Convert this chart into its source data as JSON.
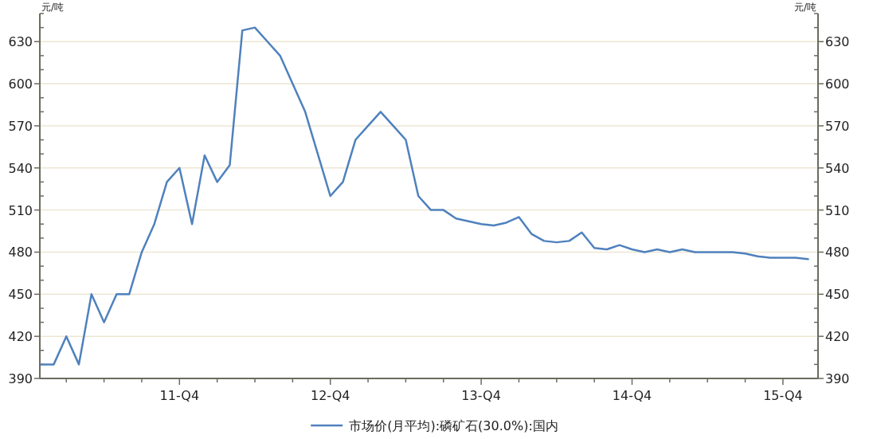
{
  "chart_data": {
    "type": "line",
    "ylabel": "元/吨",
    "y2label": "元/吨",
    "categories": [
      null,
      null,
      null,
      null,
      null,
      null,
      null,
      null,
      null,
      null,
      null,
      "11-Q4",
      null,
      null,
      null,
      null,
      null,
      null,
      null,
      null,
      null,
      null,
      null,
      "12-Q4",
      null,
      null,
      null,
      null,
      null,
      null,
      null,
      null,
      null,
      null,
      null,
      "13-Q4",
      null,
      null,
      null,
      null,
      null,
      null,
      null,
      null,
      null,
      null,
      null,
      "14-Q4",
      null,
      null,
      null,
      null,
      null,
      null,
      null,
      null,
      null,
      null,
      null,
      "15-Q4",
      null,
      null
    ],
    "series": [
      {
        "name": "市场价(月平均):磷矿石(30.0%):国内",
        "color": "#4f81bd",
        "values": [
          400,
          400,
          420,
          400,
          450,
          430,
          450,
          450,
          480,
          500,
          530,
          540,
          500,
          549,
          530,
          542,
          638,
          640,
          630,
          620,
          600,
          580,
          550,
          520,
          530,
          560,
          570,
          580,
          570,
          560,
          520,
          510,
          510,
          504,
          502,
          500,
          499,
          501,
          505,
          493,
          488,
          487,
          488,
          494,
          483,
          482,
          485,
          482,
          480,
          482,
          480,
          482,
          480,
          480,
          480,
          480,
          479,
          477,
          476,
          476,
          476,
          475
        ]
      }
    ],
    "ylim": [
      390,
      650
    ],
    "yticks": [
      390,
      {
        "value": 400,
        "label": null
      },
      {
        "value": 410,
        "label": null
      },
      420,
      {
        "value": 430,
        "label": null
      },
      {
        "value": 440,
        "label": null
      },
      450,
      {
        "value": 460,
        "label": null
      },
      {
        "value": 470,
        "label": null
      },
      480,
      {
        "value": 490,
        "label": null
      },
      {
        "value": 500,
        "label": null
      },
      510,
      {
        "value": 520,
        "label": null
      },
      {
        "value": 530,
        "label": null
      },
      540,
      {
        "value": 550,
        "label": null
      },
      {
        "value": 560,
        "label": null
      },
      570,
      {
        "value": 580,
        "label": null
      },
      {
        "value": 590,
        "label": null
      },
      600,
      {
        "value": 610,
        "label": null
      },
      {
        "value": 620,
        "label": null
      },
      630,
      {
        "value": 640,
        "label": null
      },
      {
        "value": 650,
        "label": null
      }
    ],
    "y2lim": [
      390,
      650
    ],
    "y2ticks": [
      390,
      {
        "value": 400,
        "label": null
      },
      {
        "value": 410,
        "label": null
      },
      420,
      {
        "value": 430,
        "label": null
      },
      {
        "value": 440,
        "label": null
      },
      450,
      {
        "value": 460,
        "label": null
      },
      {
        "value": 470,
        "label": null
      },
      480,
      {
        "value": 490,
        "label": null
      },
      {
        "value": 500,
        "label": null
      },
      510,
      {
        "value": 520,
        "label": null
      },
      {
        "value": 530,
        "label": null
      },
      540,
      {
        "value": 550,
        "label": null
      },
      {
        "value": 560,
        "label": null
      },
      570,
      {
        "value": 580,
        "label": null
      },
      {
        "value": 590,
        "label": null
      },
      600,
      {
        "value": 610,
        "label": null
      },
      {
        "value": 620,
        "label": null
      },
      630,
      {
        "value": 640,
        "label": null
      },
      {
        "value": 650,
        "label": null
      }
    ],
    "grid": "y",
    "legend": "bottom",
    "marker": "none",
    "line_style": "solid"
  }
}
